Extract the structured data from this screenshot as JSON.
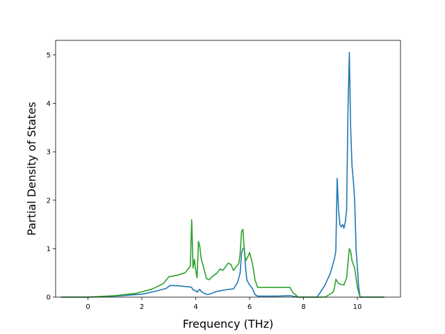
{
  "chart_data": {
    "type": "line",
    "title": "",
    "xlabel": "Frequency (THz)",
    "ylabel": "Partial Density of States",
    "xlim": [
      -1.2,
      11.6
    ],
    "ylim": [
      0,
      5.3
    ],
    "xticks": [
      0,
      2,
      4,
      6,
      8,
      10
    ],
    "yticks": [
      0,
      1,
      2,
      3,
      4,
      5
    ],
    "grid": false,
    "legend": "none",
    "series": [
      {
        "color": "#1f77b4",
        "points": [
          [
            -1.0,
            0
          ],
          [
            0.0,
            0.0
          ],
          [
            1.0,
            0.02
          ],
          [
            2.0,
            0.06
          ],
          [
            2.5,
            0.12
          ],
          [
            2.9,
            0.18
          ],
          [
            3.05,
            0.24
          ],
          [
            3.3,
            0.235
          ],
          [
            3.6,
            0.22
          ],
          [
            3.8,
            0.21
          ],
          [
            3.85,
            0.2
          ],
          [
            3.9,
            0.15
          ],
          [
            4.0,
            0.13
          ],
          [
            4.05,
            0.1
          ],
          [
            4.1,
            0.14
          ],
          [
            4.15,
            0.16
          ],
          [
            4.2,
            0.12
          ],
          [
            4.3,
            0.08
          ],
          [
            4.45,
            0.05
          ],
          [
            4.6,
            0.08
          ],
          [
            4.8,
            0.12
          ],
          [
            5.0,
            0.14
          ],
          [
            5.2,
            0.16
          ],
          [
            5.4,
            0.17
          ],
          [
            5.55,
            0.3
          ],
          [
            5.65,
            0.5
          ],
          [
            5.7,
            0.9
          ],
          [
            5.75,
            1.0
          ],
          [
            5.8,
            1.01
          ],
          [
            5.85,
            0.6
          ],
          [
            5.9,
            0.35
          ],
          [
            6.0,
            0.25
          ],
          [
            6.1,
            0.18
          ],
          [
            6.2,
            0.05
          ],
          [
            6.3,
            0.02
          ],
          [
            7.0,
            0.02
          ],
          [
            7.5,
            0.03
          ],
          [
            7.8,
            0.0
          ],
          [
            8.5,
            0.0
          ],
          [
            8.6,
            0.08
          ],
          [
            8.8,
            0.25
          ],
          [
            9.0,
            0.5
          ],
          [
            9.15,
            0.8
          ],
          [
            9.2,
            0.95
          ],
          [
            9.25,
            2.45
          ],
          [
            9.3,
            1.8
          ],
          [
            9.35,
            1.5
          ],
          [
            9.4,
            1.45
          ],
          [
            9.45,
            1.5
          ],
          [
            9.5,
            1.42
          ],
          [
            9.55,
            1.55
          ],
          [
            9.6,
            1.8
          ],
          [
            9.65,
            3.8
          ],
          [
            9.7,
            5.05
          ],
          [
            9.75,
            3.5
          ],
          [
            9.8,
            2.7
          ],
          [
            9.85,
            2.4
          ],
          [
            9.9,
            2.0
          ],
          [
            9.95,
            1.0
          ],
          [
            10.05,
            0.2
          ],
          [
            10.1,
            0.0
          ],
          [
            11.0,
            0.0
          ]
        ]
      },
      {
        "color": "#2ca02c",
        "points": [
          [
            -1.0,
            0
          ],
          [
            0.0,
            0.0
          ],
          [
            1.0,
            0.03
          ],
          [
            1.8,
            0.08
          ],
          [
            2.4,
            0.17
          ],
          [
            2.8,
            0.28
          ],
          [
            3.0,
            0.42
          ],
          [
            3.3,
            0.45
          ],
          [
            3.6,
            0.5
          ],
          [
            3.75,
            0.6
          ],
          [
            3.8,
            0.65
          ],
          [
            3.85,
            1.6
          ],
          [
            3.88,
            1.0
          ],
          [
            3.9,
            0.6
          ],
          [
            3.95,
            0.78
          ],
          [
            4.0,
            0.55
          ],
          [
            4.05,
            0.4
          ],
          [
            4.1,
            1.15
          ],
          [
            4.15,
            1.05
          ],
          [
            4.2,
            0.8
          ],
          [
            4.3,
            0.6
          ],
          [
            4.4,
            0.38
          ],
          [
            4.5,
            0.36
          ],
          [
            4.6,
            0.42
          ],
          [
            4.8,
            0.5
          ],
          [
            4.9,
            0.58
          ],
          [
            5.0,
            0.55
          ],
          [
            5.1,
            0.62
          ],
          [
            5.2,
            0.7
          ],
          [
            5.3,
            0.68
          ],
          [
            5.4,
            0.55
          ],
          [
            5.6,
            0.7
          ],
          [
            5.65,
            0.9
          ],
          [
            5.7,
            1.35
          ],
          [
            5.75,
            1.4
          ],
          [
            5.8,
            1.0
          ],
          [
            5.85,
            0.75
          ],
          [
            5.95,
            0.85
          ],
          [
            6.0,
            0.92
          ],
          [
            6.1,
            0.7
          ],
          [
            6.15,
            0.55
          ],
          [
            6.2,
            0.35
          ],
          [
            6.3,
            0.2
          ],
          [
            7.0,
            0.2
          ],
          [
            7.5,
            0.2
          ],
          [
            7.6,
            0.1
          ],
          [
            7.8,
            0.0
          ],
          [
            8.8,
            0.0
          ],
          [
            9.1,
            0.1
          ],
          [
            9.15,
            0.2
          ],
          [
            9.2,
            0.37
          ],
          [
            9.3,
            0.28
          ],
          [
            9.4,
            0.26
          ],
          [
            9.5,
            0.25
          ],
          [
            9.6,
            0.4
          ],
          [
            9.7,
            1.0
          ],
          [
            9.75,
            0.95
          ],
          [
            9.8,
            0.75
          ],
          [
            9.9,
            0.6
          ],
          [
            10.0,
            0.2
          ],
          [
            10.1,
            0.0
          ],
          [
            11.0,
            0.0
          ]
        ]
      }
    ]
  }
}
